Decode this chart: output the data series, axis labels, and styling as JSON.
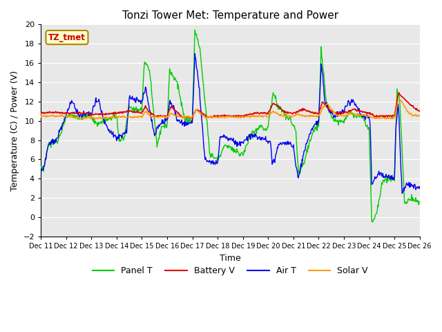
{
  "title": "Tonzi Tower Met: Temperature and Power",
  "xlabel": "Time",
  "ylabel": "Temperature (C) / Power (V)",
  "ylim": [
    -2,
    20
  ],
  "yticks": [
    -2,
    0,
    2,
    4,
    6,
    8,
    10,
    12,
    14,
    16,
    18,
    20
  ],
  "bg_color": "#ffffff",
  "plot_bg_color": "#f0f0f0",
  "legend_labels": [
    "Panel T",
    "Battery V",
    "Air T",
    "Solar V"
  ],
  "legend_colors": [
    "#00dd00",
    "#dd0000",
    "#0000dd",
    "#ff9900"
  ],
  "watermark_text": "TZ_tmet",
  "watermark_color": "#cc0000",
  "watermark_bg": "#ffffcc",
  "xtick_labels": [
    "Dec 11",
    "Dec 12",
    "Dec 13",
    "Dec 14",
    "Dec 15",
    "Dec 16",
    "Dec 17",
    "Dec 18",
    "Dec 19",
    "Dec 20",
    "Dec 21",
    "Dec 22",
    "Dec 23",
    "Dec 24",
    "Dec 25",
    "Dec 26"
  ]
}
